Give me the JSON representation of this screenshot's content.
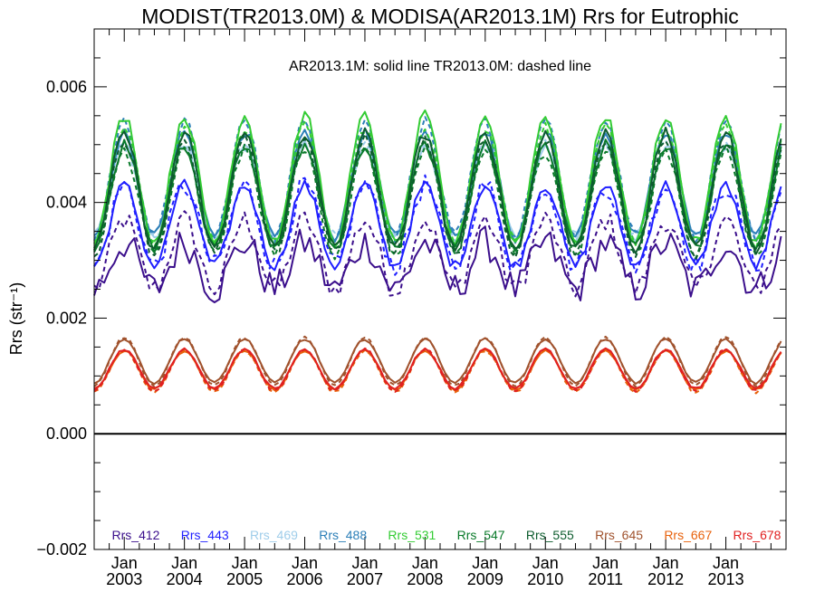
{
  "chart_data": {
    "type": "line",
    "title": "MODIST(TR2013.0M) & MODISA(AR2013.1M)  Rrs for Eutrophic",
    "annotation": "AR2013.1M: solid line   TR2013.0M: dashed line",
    "ylabel": "Rrs (str⁻¹)",
    "ylim": [
      -0.002,
      0.007
    ],
    "yticks": [
      -0.002,
      0.0,
      0.002,
      0.004,
      0.006
    ],
    "ytick_labels": [
      "−0.002",
      "0.000",
      "0.002",
      "0.004",
      "0.006"
    ],
    "xlim": [
      "2002-07",
      "2014-01"
    ],
    "xticks": [
      {
        "month": "2003-01",
        "line1": "Jan",
        "line2": "2003"
      },
      {
        "month": "2004-01",
        "line1": "Jan",
        "line2": "2004"
      },
      {
        "month": "2005-01",
        "line1": "Jan",
        "line2": "2005"
      },
      {
        "month": "2006-01",
        "line1": "Jan",
        "line2": "2006"
      },
      {
        "month": "2007-01",
        "line1": "Jan",
        "line2": "2007"
      },
      {
        "month": "2008-01",
        "line1": "Jan",
        "line2": "2008"
      },
      {
        "month": "2009-01",
        "line1": "Jan",
        "line2": "2009"
      },
      {
        "month": "2010-01",
        "line1": "Jan",
        "line2": "2010"
      },
      {
        "month": "2011-01",
        "line1": "Jan",
        "line2": "2011"
      },
      {
        "month": "2012-01",
        "line1": "Jan",
        "line2": "2012"
      },
      {
        "month": "2013-01",
        "line1": "Jan",
        "line2": "2013"
      }
    ],
    "date_range": [
      "2002-07",
      "2013-12"
    ],
    "zero_line": 0.0,
    "grid": false,
    "legend_position": "bottom",
    "line_styles": {
      "solid": "AR2013.1M",
      "dashed": "TR2013.0M"
    },
    "series": [
      {
        "name": "Rrs_412",
        "color": "#3b0f8c",
        "peak_month": 1,
        "solid": {
          "mean": 0.0029,
          "amplitude": 0.0004,
          "noise": 0.0003
        },
        "dashed": {
          "mean": 0.0031,
          "amplitude": 0.0006,
          "noise": 0.0002
        }
      },
      {
        "name": "Rrs_443",
        "color": "#1f1fff",
        "peak_month": 1,
        "solid": {
          "mean": 0.0036,
          "amplitude": 0.0007,
          "noise": 0.0001
        },
        "dashed": {
          "mean": 0.0036,
          "amplitude": 0.0007,
          "noise": 0.0002
        }
      },
      {
        "name": "Rrs_469",
        "color": "#9fcdea",
        "peak_month": 1,
        "solid": {
          "mean": 0.0042,
          "amplitude": 0.0008,
          "noise": 0.0001
        },
        "dashed": {
          "mean": 0.0042,
          "amplitude": 0.0008,
          "noise": 0.0001
        }
      },
      {
        "name": "Rrs_488",
        "color": "#2c7fb8",
        "peak_month": 1,
        "solid": {
          "mean": 0.0043,
          "amplitude": 0.0009,
          "noise": 0.0001
        },
        "dashed": {
          "mean": 0.0044,
          "amplitude": 0.001,
          "noise": 0.0001
        }
      },
      {
        "name": "Rrs_531",
        "color": "#33cc33",
        "peak_month": 1,
        "solid": {
          "mean": 0.0044,
          "amplitude": 0.0011,
          "noise": 0.0001
        },
        "dashed": {
          "mean": 0.0043,
          "amplitude": 0.001,
          "noise": 0.0001
        }
      },
      {
        "name": "Rrs_547",
        "color": "#0a7a2a",
        "peak_month": 1,
        "solid": {
          "mean": 0.0041,
          "amplitude": 0.0009,
          "noise": 0.0001
        },
        "dashed": {
          "mean": 0.004,
          "amplitude": 0.0009,
          "noise": 0.0001
        }
      },
      {
        "name": "Rrs_555",
        "color": "#0d5c2e",
        "peak_month": 1,
        "solid": {
          "mean": 0.0042,
          "amplitude": 0.001,
          "noise": 0.0001
        },
        "dashed": {
          "mean": 0.0041,
          "amplitude": 0.001,
          "noise": 0.0001
        }
      },
      {
        "name": "Rrs_645",
        "color": "#a0522d",
        "peak_month": 1,
        "solid": {
          "mean": 0.00126,
          "amplitude": 0.00038,
          "noise": 2e-05
        },
        "dashed": {
          "mean": 0.00125,
          "amplitude": 0.00042,
          "noise": 2e-05
        }
      },
      {
        "name": "Rrs_667",
        "color": "#e8620c",
        "peak_month": 1,
        "solid": {
          "mean": 0.0011,
          "amplitude": 0.00034,
          "noise": 2e-05
        },
        "dashed": {
          "mean": 0.00108,
          "amplitude": 0.00036,
          "noise": 2e-05
        }
      },
      {
        "name": "Rrs_678",
        "color": "#e02020",
        "peak_month": 1,
        "solid": {
          "mean": 0.00112,
          "amplitude": 0.00034,
          "noise": 2e-05
        },
        "dashed": {
          "mean": 0.0011,
          "amplitude": 0.00036,
          "noise": 2e-05
        }
      }
    ]
  }
}
